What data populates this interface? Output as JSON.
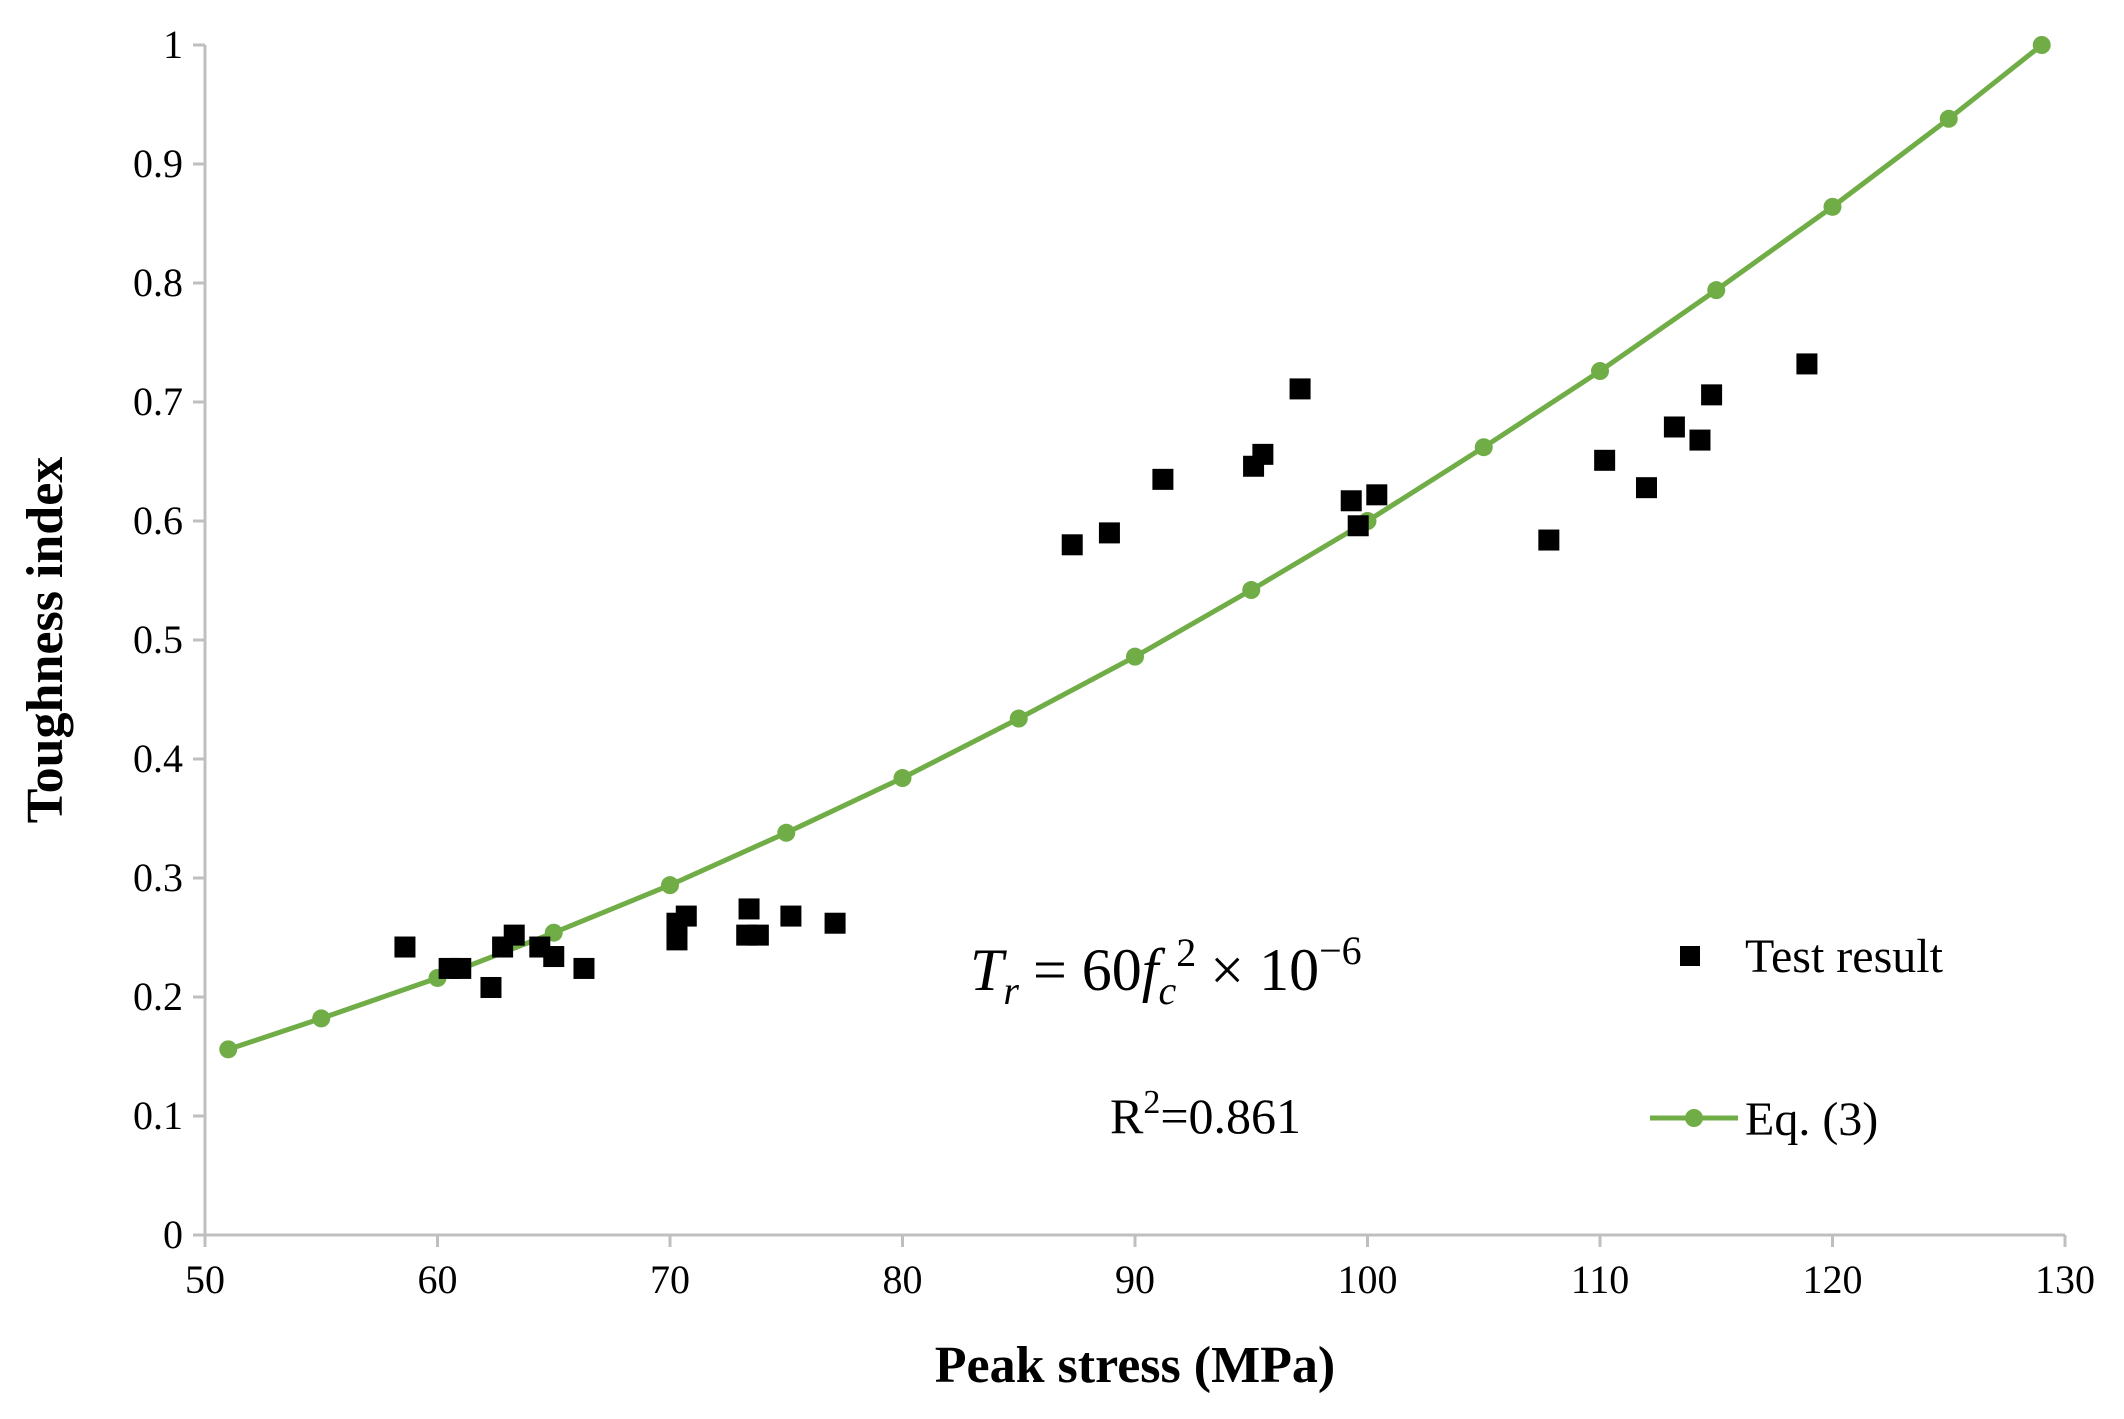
{
  "chart_data": {
    "type": "scatter",
    "title": "",
    "xlabel": "Peak stress (MPa)",
    "ylabel": "Toughness index",
    "xlim": [
      50,
      130
    ],
    "ylim": [
      0,
      1
    ],
    "x_ticks": [
      "50",
      "60",
      "70",
      "80",
      "90",
      "100",
      "110",
      "120",
      "130"
    ],
    "y_ticks": [
      "0",
      "0.1",
      "0.2",
      "0.3",
      "0.4",
      "0.5",
      "0.6",
      "0.7",
      "0.8",
      "0.9",
      "1"
    ],
    "grid": false,
    "legend_position": "bottom-right",
    "series": [
      {
        "name": "Test result",
        "kind": "scatter",
        "marker": "square",
        "color": "#000000",
        "points": [
          [
            58.6,
            0.242
          ],
          [
            60.5,
            0.224
          ],
          [
            61.0,
            0.224
          ],
          [
            62.3,
            0.208
          ],
          [
            62.8,
            0.242
          ],
          [
            63.3,
            0.252
          ],
          [
            64.4,
            0.242
          ],
          [
            65.0,
            0.234
          ],
          [
            66.3,
            0.224
          ],
          [
            70.3,
            0.248
          ],
          [
            70.3,
            0.262
          ],
          [
            70.7,
            0.268
          ],
          [
            73.3,
            0.252
          ],
          [
            73.4,
            0.274
          ],
          [
            73.8,
            0.252
          ],
          [
            75.2,
            0.268
          ],
          [
            77.1,
            0.262
          ],
          [
            87.3,
            0.58
          ],
          [
            88.9,
            0.59
          ],
          [
            91.2,
            0.635
          ],
          [
            95.1,
            0.646
          ],
          [
            95.5,
            0.656
          ],
          [
            97.1,
            0.711
          ],
          [
            99.3,
            0.617
          ],
          [
            99.6,
            0.596
          ],
          [
            100.4,
            0.622
          ],
          [
            107.8,
            0.584
          ],
          [
            110.2,
            0.651
          ],
          [
            112.0,
            0.628
          ],
          [
            113.2,
            0.679
          ],
          [
            114.3,
            0.668
          ],
          [
            114.8,
            0.706
          ],
          [
            118.9,
            0.732
          ]
        ]
      },
      {
        "name": "Eq. (3)",
        "kind": "line",
        "marker": "circle",
        "color": "#70AD47",
        "points": [
          [
            51,
            0.156
          ],
          [
            55,
            0.182
          ],
          [
            60,
            0.216
          ],
          [
            65,
            0.254
          ],
          [
            70,
            0.294
          ],
          [
            75,
            0.338
          ],
          [
            80,
            0.384
          ],
          [
            85,
            0.434
          ],
          [
            90,
            0.486
          ],
          [
            95,
            0.542
          ],
          [
            100,
            0.6
          ],
          [
            105,
            0.662
          ],
          [
            110,
            0.726
          ],
          [
            115,
            0.794
          ],
          [
            120,
            0.864
          ],
          [
            125,
            0.938
          ],
          [
            129,
            1.0
          ]
        ]
      }
    ],
    "annotations": {
      "equation": {
        "T": "T",
        "r": "r",
        "equals": "= 60",
        "f": "f",
        "c": "c",
        "sq": "2",
        "times": "× 10",
        "exp": "−6"
      },
      "r2": {
        "r": "R",
        "sup": "2",
        "value": "=0.861"
      }
    }
  }
}
